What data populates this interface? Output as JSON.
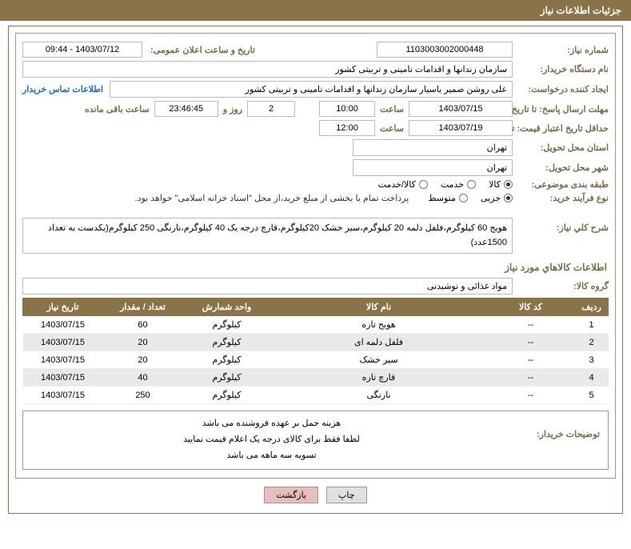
{
  "header": {
    "title": "جزئیات اطلاعات نیاز"
  },
  "fields": {
    "need_no_label": "شماره نیاز:",
    "need_no": "1103003002000448",
    "announce_label": "تاریخ و ساعت اعلان عمومی:",
    "announce_value": "1403/07/12 - 09:44",
    "buyer_org_label": "نام دستگاه خریدار:",
    "buyer_org": "سازمان زندانها و اقدامات تامینی و تربیتی کشور",
    "creator_label": "ایجاد کننده درخواست:",
    "creator": "علی روشن ضمیر یاسیار سازمان زندانها و اقدامات تامینی و تربیتی کشور",
    "contact_link": "اطلاعات تماس خریدار",
    "resp_deadline_label_a": "مهلت ارسال پاسخ:",
    "resp_deadline_label_b": "تا تاریخ:",
    "resp_date": "1403/07/15",
    "time_label": "ساعت",
    "resp_time": "10:00",
    "days_value": "2",
    "days_and": "روز و",
    "countdown": "23:46:45",
    "remaining": "ساعت باقی مانده",
    "valid_deadline_label_a": "حداقل تاریخ اعتبار قیمت:",
    "valid_deadline_label_b": "تا تاریخ:",
    "valid_date": "1403/07/19",
    "valid_time": "12:00",
    "province_label": "استان محل تحویل:",
    "province": "تهران",
    "city_label": "شهر محل تحویل:",
    "city": "تهران",
    "category_label": "طبقه بندی موضوعی:",
    "cat_goods": "کالا",
    "cat_service": "خدمت",
    "cat_both": "کالا/خدمت",
    "process_label": "نوع فرآیند خرید:",
    "proc_small": "جزیی",
    "proc_medium": "متوسط",
    "process_note": "پرداخت تمام یا بخشی از مبلغ خرید،از محل \"اسناد خزانه اسلامی\" خواهد بود.",
    "desc_label": "شرح کلي نياز:",
    "desc_text": "هویج 60 کیلوگرم،فلفل دلمه 20 کیلوگرم،سیر خشک 20کیلوگرم،قارچ درجه یک 40 کیلوگرم،نارنگی 250 کیلوگرم(یکدست به تعداد 1500عدد)",
    "items_title": "اطلاعات کالاهاي مورد نياز",
    "group_label": "گروه کالا:",
    "group_value": "مواد غذائی و نوشیدنی",
    "buyer_notes_label": "توضیحات خریدار:",
    "buyer_notes_l1": "هزینه حمل بر عهده فروشنده می باشد",
    "buyer_notes_l2": "لطفا فقط برای کالای درجه یک اعلام قیمت نمایید",
    "buyer_notes_l3": "تسویه سه ماهه می باشد"
  },
  "table": {
    "cols": {
      "row": "ردیف",
      "code": "کد کالا",
      "name": "نام کالا",
      "unit": "واحد شمارش",
      "qty": "تعداد / مقدار",
      "date": "تاريخ نياز"
    },
    "rows": [
      {
        "n": "1",
        "code": "--",
        "name": "هویج تازه",
        "unit": "کیلوگرم",
        "qty": "60",
        "date": "1403/07/15"
      },
      {
        "n": "2",
        "code": "--",
        "name": "فلفل دلمه ای",
        "unit": "کیلوگرم",
        "qty": "20",
        "date": "1403/07/15"
      },
      {
        "n": "3",
        "code": "--",
        "name": "سیر خشک",
        "unit": "کیلوگرم",
        "qty": "20",
        "date": "1403/07/15"
      },
      {
        "n": "4",
        "code": "--",
        "name": "قارچ تازه",
        "unit": "کیلوگرم",
        "qty": "40",
        "date": "1403/07/15"
      },
      {
        "n": "5",
        "code": "--",
        "name": "نارنگی",
        "unit": "کیلوگرم",
        "qty": "250",
        "date": "1403/07/15"
      }
    ]
  },
  "buttons": {
    "print": "چاپ",
    "back": "بازگشت"
  },
  "colors": {
    "brand": "#8a7349",
    "label": "#7a6a4a",
    "link": "#1a6ebd",
    "row_alt": "#e9e9e9"
  }
}
